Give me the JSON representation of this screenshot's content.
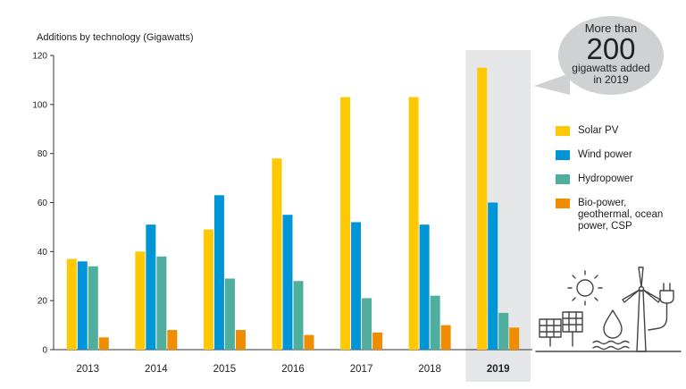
{
  "colors": {
    "solar": "#FFC800",
    "wind": "#0095D6",
    "hydro": "#4FAE9E",
    "bio": "#F08C00",
    "highlight": "#E4E6E7",
    "axis": "#333333",
    "grid": "#DADADA"
  },
  "callout": {
    "line1": "More than",
    "big": "200",
    "line2": "gigawatts added",
    "line3": "in 2019"
  },
  "icons": [
    "solar-panel-icon",
    "sun-icon",
    "water-drop-icon",
    "wind-turbine-icon",
    "plug-icon"
  ],
  "chart_data": {
    "type": "bar",
    "ylabel": "Additions by technology (Gigawatts)",
    "ylim": [
      0,
      120
    ],
    "yticks": [
      0,
      20,
      40,
      60,
      80,
      100,
      120
    ],
    "grid": false,
    "legend_position": "right",
    "highlight_category": "2019",
    "categories": [
      "2013",
      "2014",
      "2015",
      "2016",
      "2017",
      "2018",
      "2019"
    ],
    "series": [
      {
        "name": "Solar PV",
        "values": [
          37,
          40,
          49,
          78,
          103,
          103,
          115
        ]
      },
      {
        "name": "Wind power",
        "values": [
          36,
          51,
          63,
          55,
          52,
          51,
          60
        ]
      },
      {
        "name": "Hydropower",
        "values": [
          34,
          38,
          29,
          28,
          21,
          22,
          15
        ]
      },
      {
        "name": "Bio-power, geothermal, ocean power, CSP",
        "values": [
          5,
          8,
          8,
          6,
          7,
          10,
          9
        ]
      }
    ]
  }
}
